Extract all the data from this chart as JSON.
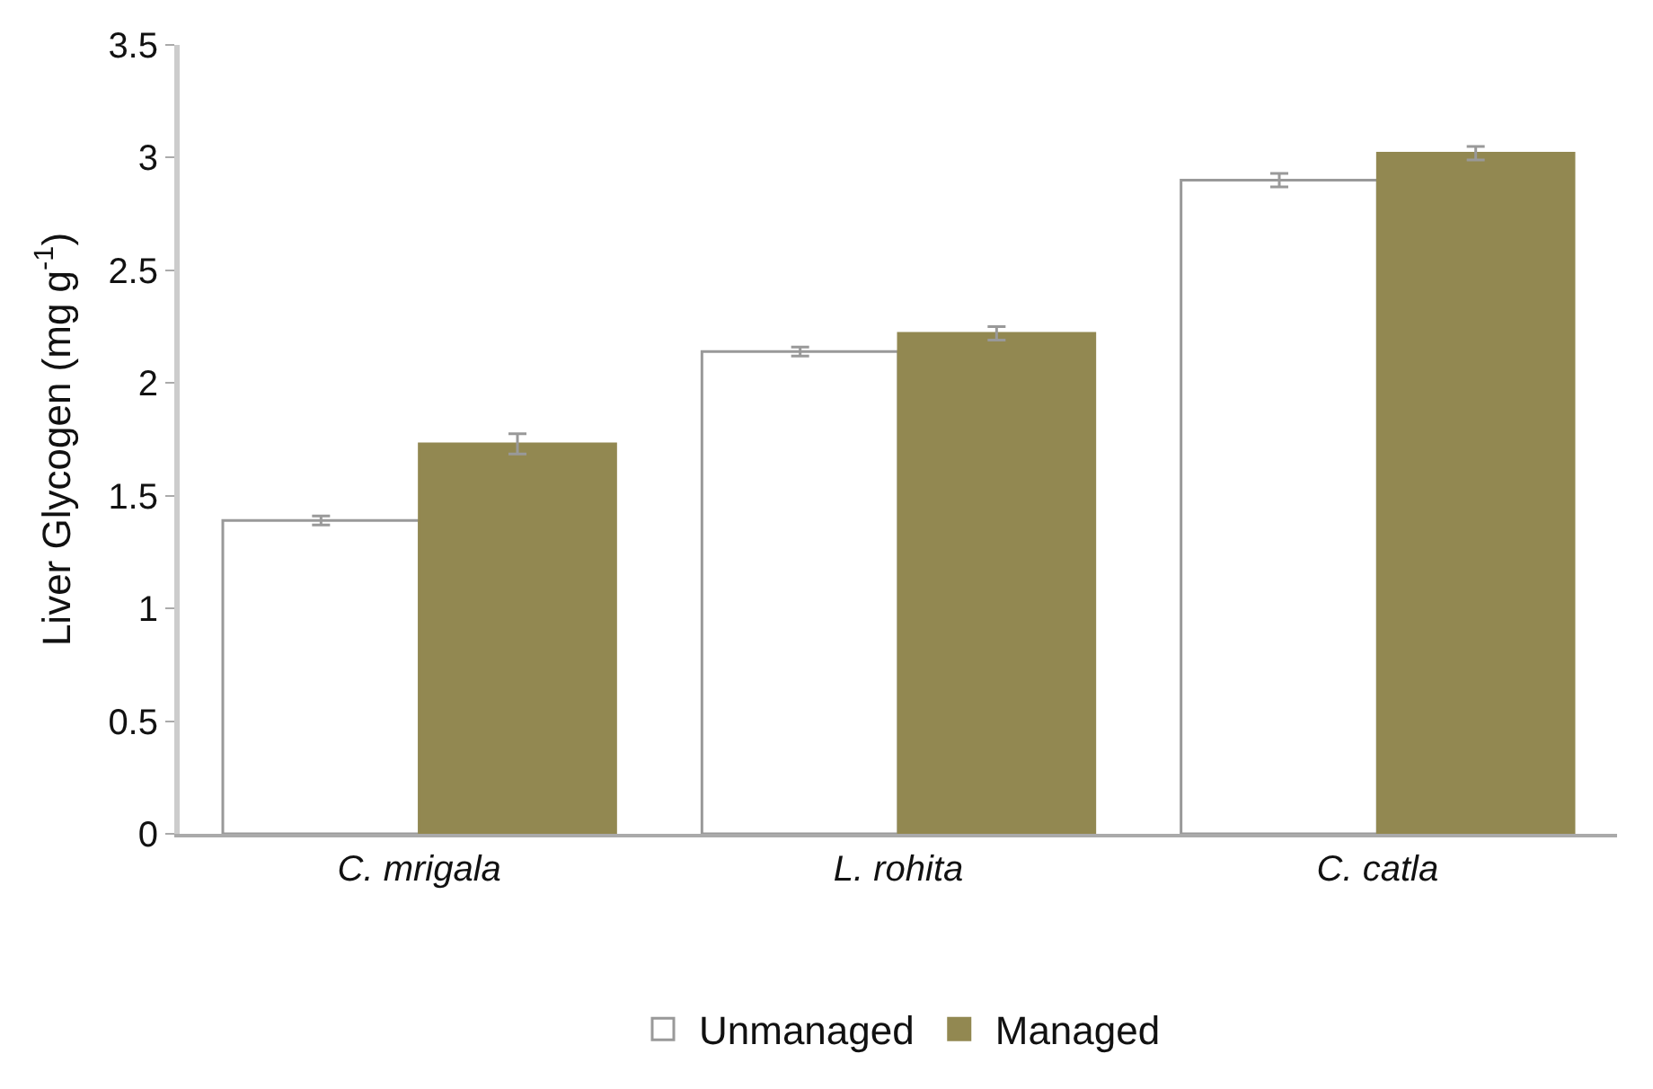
{
  "chart_data": {
    "type": "bar",
    "ylabel": "Liver Glycogen (mg g$^{-1}$)",
    "categories": [
      "C. mrigala",
      "L. rohita",
      "C. catla"
    ],
    "series": [
      {
        "name": "Unmanaged",
        "color": "#ffffff",
        "values": [
          1.39,
          2.14,
          2.9
        ],
        "errors": [
          0.02,
          0.02,
          0.03
        ]
      },
      {
        "name": "Managed",
        "color": "#928851",
        "values": [
          1.73,
          2.22,
          3.02
        ],
        "errors": [
          0.045,
          0.03,
          0.03
        ]
      }
    ],
    "ylim": [
      0,
      3.5
    ],
    "yticks": [
      0,
      0.5,
      1,
      1.5,
      2,
      2.5,
      3,
      3.5
    ],
    "legend": "bottom"
  }
}
